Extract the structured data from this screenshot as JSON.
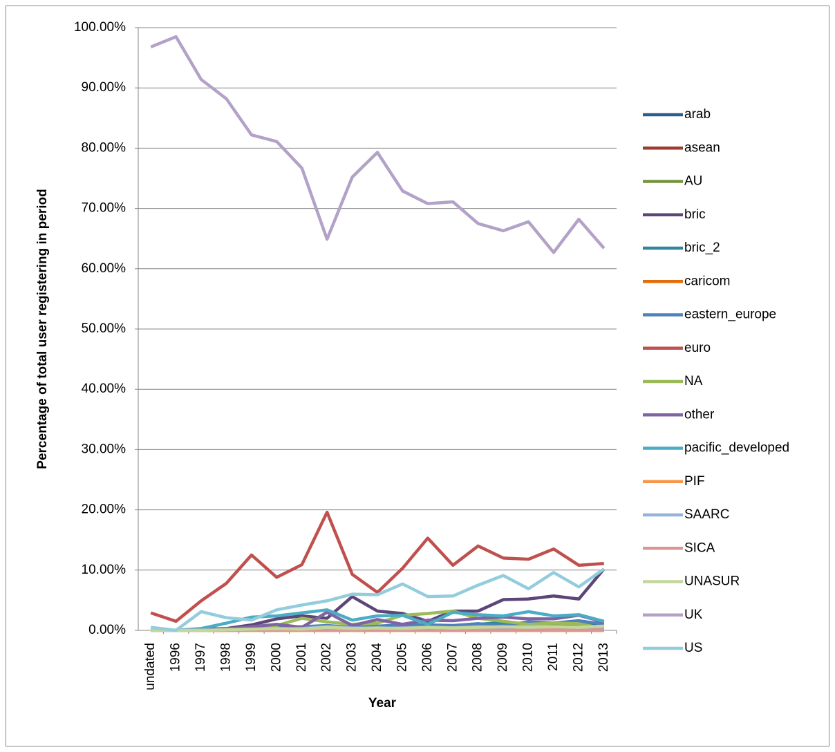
{
  "chart_data": {
    "type": "line",
    "y_label": "Percentage of total user registering in period",
    "x_label": "Year",
    "categories": [
      "undated",
      "1996",
      "1997",
      "1998",
      "1999",
      "2000",
      "2001",
      "2002",
      "2003",
      "2004",
      "2005",
      "2006",
      "2007",
      "2008",
      "2009",
      "2010",
      "2011",
      "2012",
      "2013"
    ],
    "ylim": [
      0,
      100
    ],
    "yticks": [
      {
        "value": 0,
        "label": "0.00%"
      },
      {
        "value": 10,
        "label": "10.00%"
      },
      {
        "value": 20,
        "label": "20.00%"
      },
      {
        "value": 30,
        "label": "30.00%"
      },
      {
        "value": 40,
        "label": "40.00%"
      },
      {
        "value": 50,
        "label": "50.00%"
      },
      {
        "value": 60,
        "label": "60.00%"
      },
      {
        "value": 70,
        "label": "70.00%"
      },
      {
        "value": 80,
        "label": "80.00%"
      },
      {
        "value": 90,
        "label": "90.00%"
      },
      {
        "value": 100,
        "label": "100.00%"
      }
    ],
    "grid": true,
    "legend": "right",
    "series": [
      {
        "name": "arab",
        "color": "#2c5c8a",
        "values": [
          0,
          0,
          0,
          0.1,
          0.2,
          0.3,
          0.4,
          0.3,
          0.5,
          0.4,
          0.6,
          0.8,
          0.7,
          0.9,
          1.2,
          1.0,
          1.1,
          0.9,
          1.0
        ]
      },
      {
        "name": "asean",
        "color": "#a2392f",
        "values": [
          0,
          0,
          0,
          0,
          0.1,
          0.1,
          0.1,
          0.2,
          0.1,
          0.2,
          0.2,
          0.2,
          0.3,
          0.2,
          0.3,
          0.3,
          0.3,
          0.2,
          0.3
        ]
      },
      {
        "name": "AU",
        "color": "#77933c",
        "values": [
          0,
          0,
          0,
          0.1,
          0.1,
          0.2,
          0.3,
          0.2,
          0.3,
          0.2,
          0.3,
          0.4,
          0.4,
          0.5,
          0.6,
          0.5,
          0.7,
          0.6,
          0.5
        ]
      },
      {
        "name": "bric",
        "color": "#5c4677",
        "values": [
          0,
          0,
          0.2,
          0.3,
          0.9,
          1.9,
          2.4,
          2.0,
          5.6,
          3.2,
          2.8,
          1.5,
          3.2,
          3.2,
          5.1,
          5.2,
          5.7,
          5.2,
          10.2
        ]
      },
      {
        "name": "bric_2",
        "color": "#31859c",
        "values": [
          0,
          0,
          0,
          0.2,
          0.3,
          0.4,
          0.5,
          0.4,
          0.5,
          0.6,
          0.7,
          0.8,
          0.6,
          1.0,
          1.3,
          1.0,
          1.2,
          1.1,
          1.3
        ]
      },
      {
        "name": "caricom",
        "color": "#e46c0a",
        "values": [
          0,
          0,
          0,
          0,
          0,
          0,
          0,
          0,
          0,
          0,
          0,
          0,
          0,
          0,
          0,
          0,
          0,
          0,
          0
        ]
      },
      {
        "name": "eastern_europe",
        "color": "#4f81bd",
        "values": [
          0,
          0,
          0.1,
          0.3,
          0.4,
          0.5,
          0.6,
          0.8,
          0.5,
          0.7,
          0.9,
          0.9,
          0.8,
          1.1,
          0.8,
          1.4,
          1.2,
          1.6,
          1.0
        ]
      },
      {
        "name": "euro",
        "color": "#c0504d",
        "values": [
          2.9,
          1.5,
          4.9,
          7.8,
          12.5,
          8.8,
          10.9,
          19.6,
          9.3,
          6.3,
          10.3,
          15.3,
          10.8,
          14.0,
          12.0,
          11.8,
          13.5,
          10.8,
          11.1
        ]
      },
      {
        "name": "NA",
        "color": "#9bbb59",
        "values": [
          0,
          0,
          0.1,
          0.2,
          0.4,
          0.8,
          2.0,
          1.4,
          1.0,
          1.2,
          2.5,
          2.8,
          3.2,
          2.0,
          1.5,
          1.0,
          1.2,
          1.1,
          0.3
        ]
      },
      {
        "name": "other",
        "color": "#8064a2",
        "values": [
          0,
          0,
          0.1,
          0.2,
          0.6,
          1.0,
          0.5,
          3.0,
          0.8,
          1.8,
          1.0,
          1.7,
          1.6,
          2.0,
          2.2,
          1.9,
          1.9,
          2.5,
          1.4
        ]
      },
      {
        "name": "pacific_developed",
        "color": "#4bacc6",
        "values": [
          0.3,
          0,
          0.3,
          1.2,
          2.2,
          2.4,
          2.9,
          3.4,
          1.7,
          2.4,
          2.5,
          1.0,
          3.0,
          2.6,
          2.4,
          3.1,
          2.4,
          2.6,
          1.5
        ]
      },
      {
        "name": "PIF",
        "color": "#f79646",
        "values": [
          0,
          0,
          0,
          0,
          0,
          0,
          0,
          0,
          0,
          0,
          0,
          0,
          0,
          0,
          0,
          0,
          0,
          0,
          0
        ]
      },
      {
        "name": "SAARC",
        "color": "#95b3d7",
        "values": [
          0,
          0,
          0,
          0.1,
          0.2,
          0.2,
          0.3,
          0.6,
          0.4,
          0.3,
          0.4,
          0.5,
          0.4,
          0.6,
          0.5,
          0.7,
          0.6,
          0.5,
          0.6
        ]
      },
      {
        "name": "SICA",
        "color": "#d99694",
        "values": [
          0,
          0,
          0,
          0,
          0,
          0,
          0.1,
          0,
          0.1,
          0,
          0.1,
          0.1,
          0,
          0.1,
          0,
          0.1,
          0.1,
          0,
          0.1
        ]
      },
      {
        "name": "UNASUR",
        "color": "#c3d69b",
        "values": [
          0,
          0,
          0,
          0.1,
          0.2,
          0.3,
          0.2,
          0.5,
          0.3,
          0.4,
          0.3,
          0.5,
          0.4,
          0.5,
          0.6,
          0.5,
          0.6,
          0.5,
          0.7
        ]
      },
      {
        "name": "UK",
        "color": "#b3a2c7",
        "values": [
          96.8,
          98.5,
          91.4,
          88.2,
          82.2,
          81.1,
          76.7,
          64.9,
          75.2,
          79.3,
          72.9,
          70.8,
          71.1,
          67.5,
          66.3,
          67.8,
          62.7,
          68.2,
          63.4
        ]
      },
      {
        "name": "US",
        "color": "#93cddd",
        "values": [
          0.5,
          0,
          3.1,
          2.1,
          1.7,
          3.4,
          4.2,
          4.9,
          6.0,
          5.9,
          7.7,
          5.6,
          5.7,
          7.5,
          9.1,
          6.9,
          9.6,
          7.2,
          10.2
        ]
      }
    ]
  }
}
